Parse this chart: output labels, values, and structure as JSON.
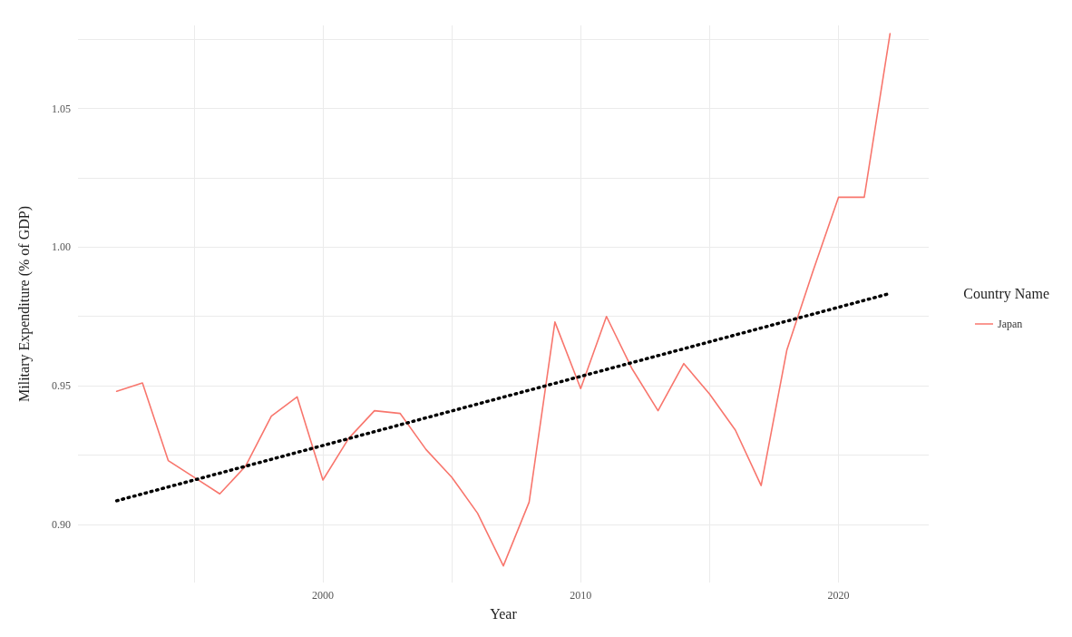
{
  "chart_data": {
    "type": "line",
    "xlabel": "Year",
    "ylabel": "Military Expenditure (% of GDP)",
    "legend_title": "Country Name",
    "legend": "right",
    "grid": true,
    "xlim": [
      1990.5,
      2023.5
    ],
    "ylim": [
      0.879,
      1.08
    ],
    "xticks": [
      {
        "value": 1995,
        "label": null
      },
      2000,
      {
        "value": 2005,
        "label": null
      },
      2010,
      {
        "value": 2015,
        "label": null
      },
      2020
    ],
    "yticks": [
      {
        "value": 0.9,
        "label": "0.90"
      },
      {
        "value": 0.925,
        "label": null
      },
      0.95,
      {
        "value": 0.975,
        "label": null
      },
      {
        "value": 1.0,
        "label": "1.00"
      },
      {
        "value": 1.025,
        "label": null
      },
      1.05,
      {
        "value": 1.075,
        "label": null
      }
    ],
    "series": [
      {
        "name": "Japan",
        "color": "#f8766d",
        "x": [
          1992,
          1993,
          1994,
          1995,
          1996,
          1997,
          1998,
          1999,
          2000,
          2001,
          2002,
          2003,
          2004,
          2005,
          2006,
          2007,
          2008,
          2009,
          2010,
          2011,
          2012,
          2013,
          2014,
          2015,
          2016,
          2017,
          2018,
          2019,
          2020,
          2021,
          2022
        ],
        "values": [
          0.948,
          0.951,
          0.923,
          0.917,
          0.911,
          0.921,
          0.939,
          0.946,
          0.916,
          0.931,
          0.941,
          0.94,
          0.927,
          0.917,
          0.904,
          0.885,
          0.908,
          0.973,
          0.949,
          0.975,
          0.956,
          0.941,
          0.958,
          0.947,
          0.934,
          0.914,
          0.963,
          0.991,
          1.018,
          1.018,
          1.077
        ]
      },
      {
        "type": "line",
        "color": "#000000",
        "line_style": "dotted",
        "x": [
          1992,
          2022
        ],
        "values": [
          0.9085,
          0.9833
        ]
      }
    ]
  }
}
